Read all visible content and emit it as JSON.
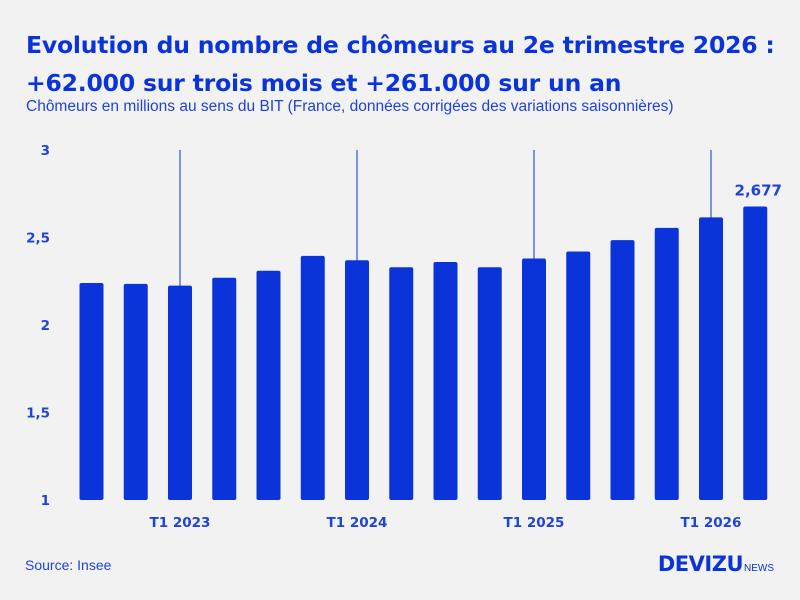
{
  "header": {
    "title_line1": "Evolution du nombre de chômeurs au 2e trimestre 2026 :",
    "title_line2": "+62.000 sur trois mois et +261.000 sur un an",
    "subtitle": "Chômeurs en millions au sens du BIT (France, données corrigées des variations saisonnières)"
  },
  "footer": {
    "source": "Source: Insee",
    "logo_main": "DEVIZU",
    "logo_sub": "NEWS"
  },
  "colors": {
    "bar": "#0a34d9",
    "text": "#1f44d6",
    "background": "#f2f2f2"
  },
  "chart_data": {
    "type": "bar",
    "values": [
      2.24,
      2.235,
      2.225,
      2.27,
      2.31,
      2.395,
      2.37,
      2.33,
      2.36,
      2.33,
      2.38,
      2.42,
      2.485,
      2.555,
      2.615,
      2.677
    ],
    "ylim": [
      1,
      3
    ],
    "yticks": [
      {
        "value": 1,
        "label": "1"
      },
      {
        "value": 1.5,
        "label": "1,5"
      },
      {
        "value": 2,
        "label": "2"
      },
      {
        "value": 2.5,
        "label": "2,5"
      },
      {
        "value": 3,
        "label": "3"
      }
    ],
    "xticks": [
      {
        "index": 2,
        "label": "T1 2023"
      },
      {
        "index": 6,
        "label": "T1 2024"
      },
      {
        "index": 10,
        "label": "T1 2025"
      },
      {
        "index": 14,
        "label": "T1 2026"
      }
    ],
    "annotation": {
      "index": 15,
      "label": "2,677"
    },
    "grid": false
  }
}
